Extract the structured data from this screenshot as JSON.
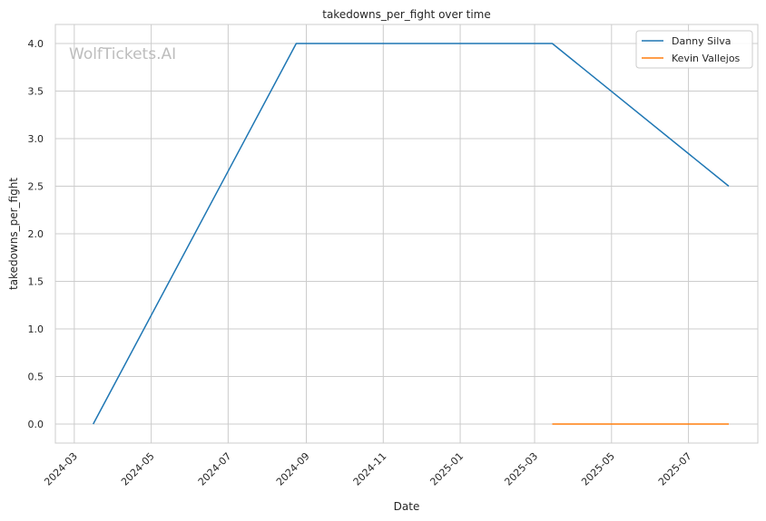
{
  "watermark": "WolfTickets.AI",
  "chart_data": {
    "type": "line",
    "title": "takedowns_per_fight over time",
    "xlabel": "Date",
    "ylabel": "takedowns_per_fight",
    "x_ticks": [
      "2024-03",
      "2024-05",
      "2024-07",
      "2024-09",
      "2024-11",
      "2025-01",
      "2025-03",
      "2025-05",
      "2025-07"
    ],
    "y_ticks": [
      "0.0",
      "0.5",
      "1.0",
      "1.5",
      "2.0",
      "2.5",
      "3.0",
      "3.5",
      "4.0"
    ],
    "xlim": [
      "2024-02-15",
      "2025-08-25"
    ],
    "ylim": [
      -0.2,
      4.2
    ],
    "grid": true,
    "legend_position": "top-right",
    "series": [
      {
        "name": "Danny Silva",
        "color": "#1f77b4",
        "points": [
          {
            "x": "2024-03-16",
            "y": 0.0
          },
          {
            "x": "2024-08-24",
            "y": 4.0
          },
          {
            "x": "2025-03-15",
            "y": 4.0
          },
          {
            "x": "2025-08-02",
            "y": 2.5
          }
        ]
      },
      {
        "name": "Kevin Vallejos",
        "color": "#ff7f0e",
        "points": [
          {
            "x": "2025-03-15",
            "y": 0.0
          },
          {
            "x": "2025-08-02",
            "y": 0.0
          }
        ]
      }
    ]
  }
}
